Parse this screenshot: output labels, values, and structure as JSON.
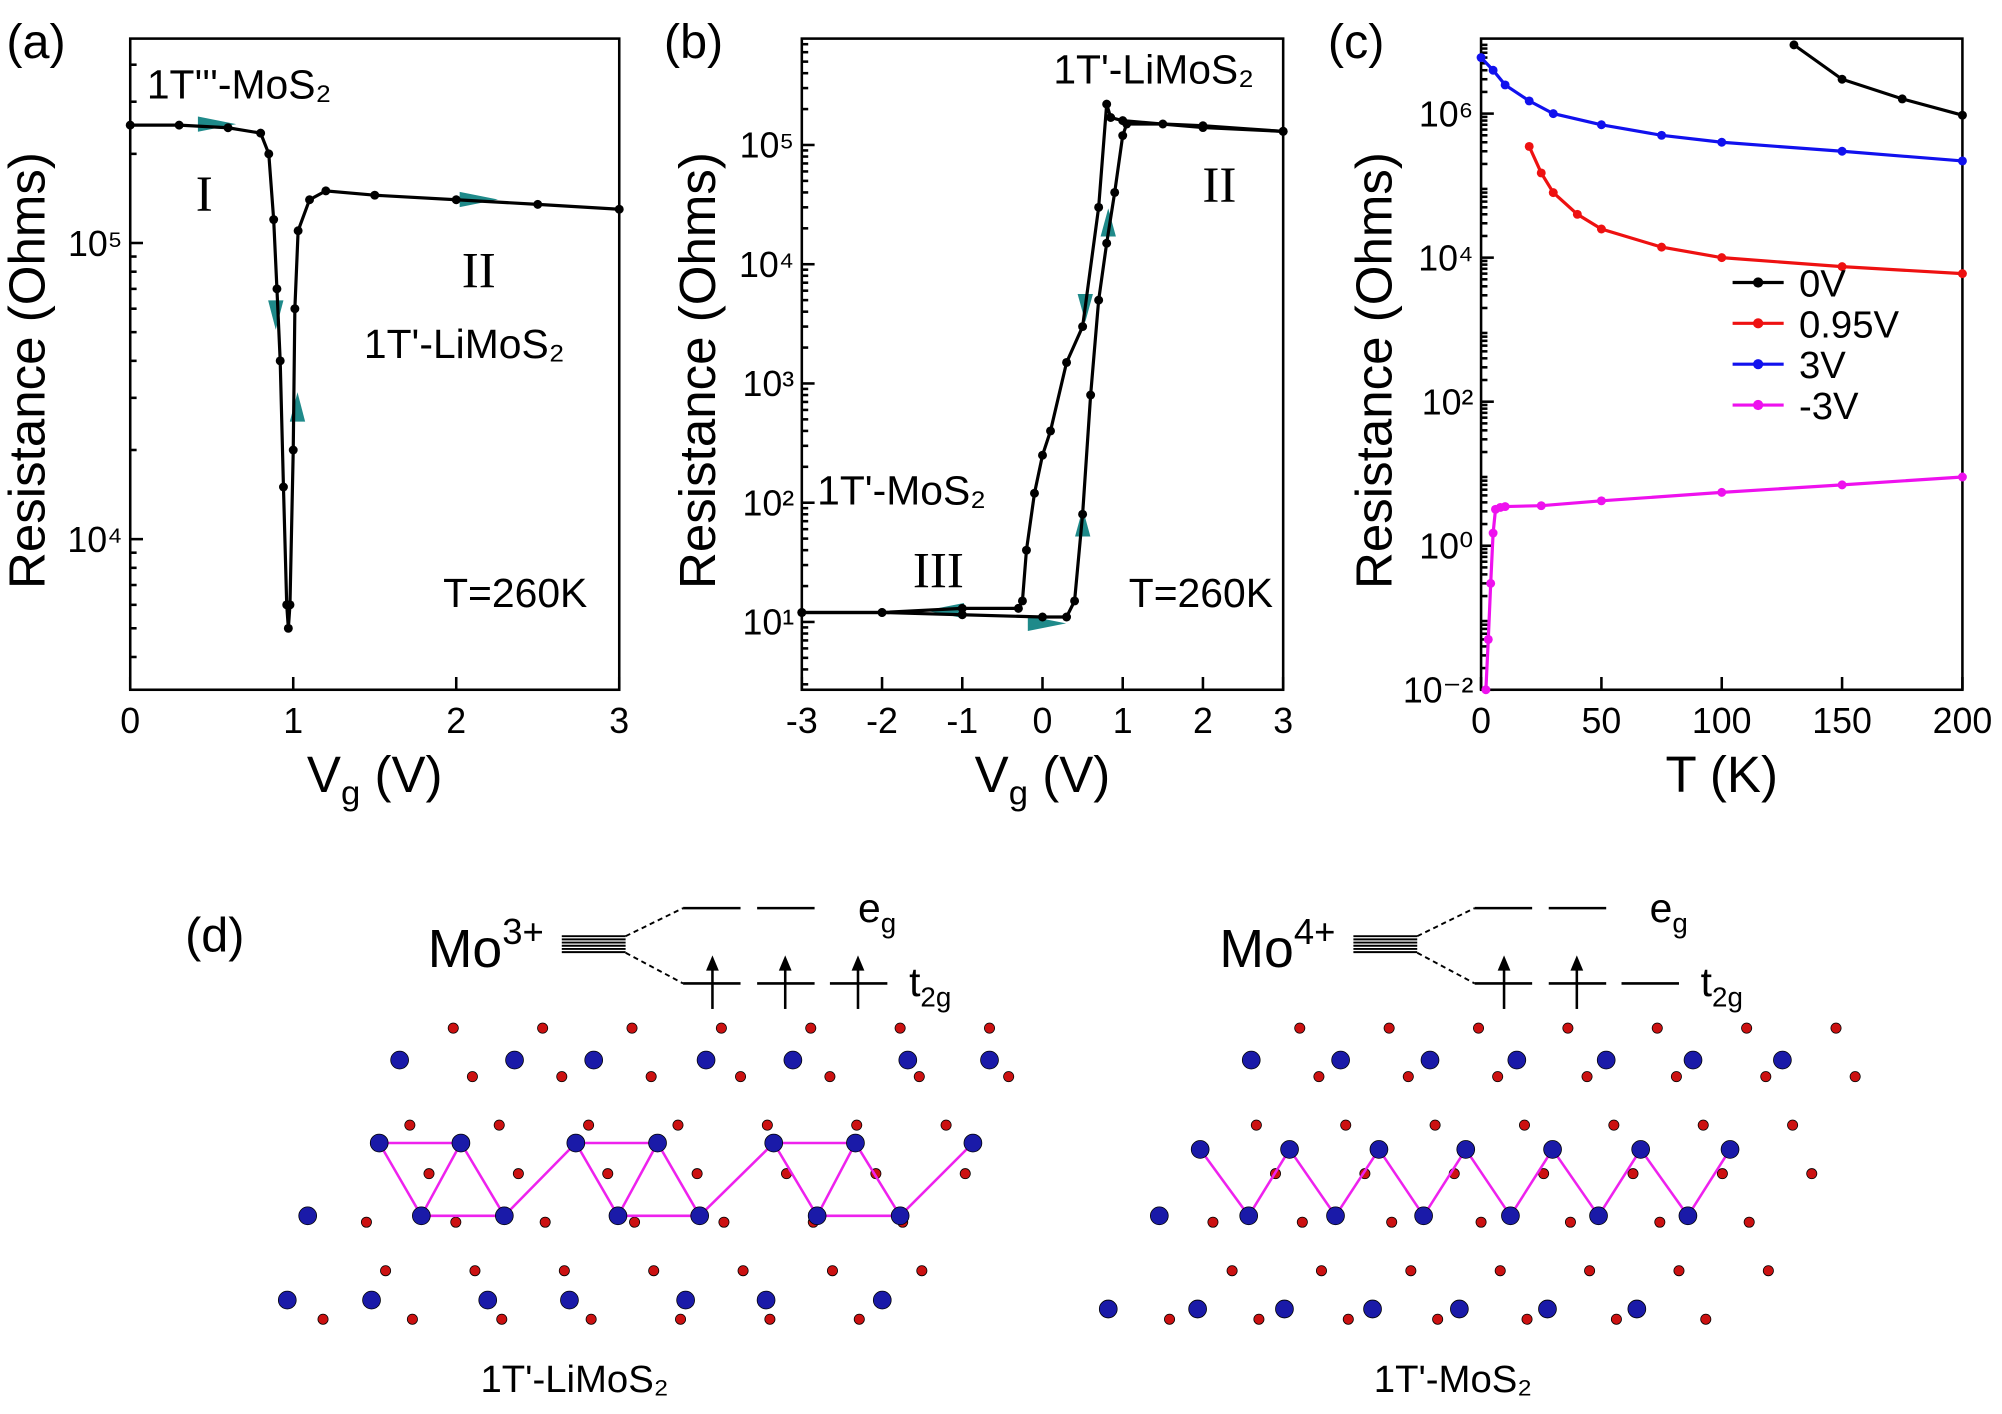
{
  "chart_data": [
    {
      "type": "line",
      "label": "(a)",
      "xlabel": [
        "V",
        "g",
        " (V)"
      ],
      "ylabel": "Resistance (Ohms)",
      "xlim": [
        0,
        3
      ],
      "xticks": [
        0,
        1,
        2,
        3
      ],
      "ylim": [
        3100,
        490000
      ],
      "ylog": true,
      "yticks": [
        {
          "value": 10000,
          "label": "10⁴"
        },
        {
          "value": 100000,
          "label": "10⁵"
        }
      ],
      "series": [
        {
          "color": "#000000",
          "x": [
            0,
            0.3,
            0.6,
            0.8,
            0.85,
            0.88,
            0.9,
            0.92,
            0.94,
            0.96,
            0.97,
            0.98,
            1.0,
            1.01,
            1.03,
            1.1,
            1.2,
            1.5,
            2.0,
            2.5,
            3.0
          ],
          "values": [
            250000,
            250000,
            245000,
            235000,
            200000,
            120000,
            70000,
            40000,
            15000,
            6000,
            5000,
            6000,
            20000,
            60000,
            110000,
            140000,
            150000,
            145000,
            140000,
            135000,
            130000
          ]
        }
      ],
      "annotations": [
        {
          "text": "1T'''-MoS₂",
          "color": "#2222cc"
        },
        {
          "text": "I",
          "color": "#dd2222"
        },
        {
          "text": "II",
          "color": "#dd2222"
        },
        {
          "text": "1T'-LiMoS₂",
          "color": "#2222cc"
        },
        {
          "text": "T=260K",
          "color": "#000000"
        }
      ]
    },
    {
      "type": "line",
      "label": "(b)",
      "xlabel": [
        "V",
        "g",
        " (V)"
      ],
      "ylabel": "Resistance (Ohms)",
      "xlim": [
        -3,
        3
      ],
      "xticks": [
        -3,
        -2,
        -1,
        0,
        1,
        2,
        3
      ],
      "ylim": [
        2.7,
        780000
      ],
      "ylog": true,
      "yticks": [
        {
          "value": 10,
          "label": "10¹"
        },
        {
          "value": 100,
          "label": "10²"
        },
        {
          "value": 1000,
          "label": "10³"
        },
        {
          "value": 10000,
          "label": "10⁴"
        },
        {
          "value": 100000,
          "label": "10⁵"
        }
      ],
      "series": [
        {
          "color": "#000000",
          "x": [
            -3,
            -2,
            -1,
            0,
            0.3,
            0.4,
            0.5,
            0.6,
            0.7,
            0.8,
            0.9,
            1.0,
            1.05,
            1.5,
            2,
            3
          ],
          "values": [
            12,
            12,
            11.5,
            11,
            11,
            15,
            80,
            800,
            5000,
            15000,
            40000,
            120000,
            150000,
            150000,
            145000,
            130000
          ]
        },
        {
          "color": "#000000",
          "x": [
            3,
            2,
            1,
            0.85,
            0.8,
            0.7,
            0.5,
            0.3,
            0.1,
            0,
            -0.1,
            -0.2,
            -0.25,
            -0.3,
            -1,
            -2,
            -3
          ],
          "values": [
            130000,
            140000,
            160000,
            170000,
            220000,
            30000,
            3000,
            1500,
            400,
            250,
            120,
            40,
            15,
            13,
            13,
            12,
            12
          ]
        }
      ],
      "annotations": [
        {
          "text": "1T'-LiMoS₂",
          "color": "#2222cc"
        },
        {
          "text": "II",
          "color": "#dd2222"
        },
        {
          "text": "1T'-MoS₂",
          "color": "#2222cc"
        },
        {
          "text": "III",
          "color": "#dd2222"
        },
        {
          "text": "T=260K",
          "color": "#000000"
        }
      ]
    },
    {
      "type": "line",
      "label": "(c)",
      "xlabel": [
        "T (K)"
      ],
      "ylabel": "Resistance (Ohms)",
      "xlim": [
        0,
        200
      ],
      "xticks": [
        0,
        50,
        100,
        150,
        200
      ],
      "ylim": [
        0.01,
        11000000
      ],
      "ylog": true,
      "yticks": [
        {
          "value": 0.01,
          "label": "10⁻²"
        },
        {
          "value": 1,
          "label": "10⁰"
        },
        {
          "value": 100,
          "label": "10²"
        },
        {
          "value": 10000,
          "label": "10⁴"
        },
        {
          "value": 1000000,
          "label": "10⁶"
        }
      ],
      "legend": "center right",
      "series": [
        {
          "name": "0V",
          "color": "#000000",
          "x": [
            130,
            150,
            175,
            200
          ],
          "values": [
            9000000,
            3000000,
            1600000,
            950000
          ]
        },
        {
          "name": "0.95V",
          "color": "#ee1111",
          "x": [
            20,
            25,
            30,
            40,
            50,
            75,
            100,
            150,
            200
          ],
          "values": [
            350000,
            150000,
            80000,
            40000,
            25000,
            14000,
            10000,
            7500,
            6000
          ]
        },
        {
          "name": "3V",
          "color": "#1111ee",
          "x": [
            0,
            5,
            10,
            20,
            30,
            50,
            75,
            100,
            150,
            200
          ],
          "values": [
            6000000,
            4000000,
            2500000,
            1500000,
            1000000,
            700000,
            500000,
            400000,
            300000,
            220000
          ]
        },
        {
          "name": "-3V",
          "color": "#ee11ee",
          "x": [
            2,
            3,
            4,
            5,
            6,
            8,
            10,
            25,
            50,
            100,
            150,
            200
          ],
          "values": [
            0.01,
            0.05,
            0.3,
            1.5,
            3.2,
            3.4,
            3.5,
            3.6,
            4.2,
            5.5,
            7,
            9
          ]
        }
      ]
    }
  ],
  "diagram": {
    "label": "(d)",
    "left": {
      "ion": [
        "Mo",
        "3+"
      ],
      "upper": [
        "e",
        "g"
      ],
      "lower": [
        "t",
        "2g"
      ],
      "caption": "1T'-LiMoS₂"
    },
    "right": {
      "ion": [
        "Mo",
        "4+"
      ],
      "upper": [
        "e",
        "g"
      ],
      "lower": [
        "t",
        "2g"
      ],
      "caption": "1T'-MoS₂"
    }
  }
}
